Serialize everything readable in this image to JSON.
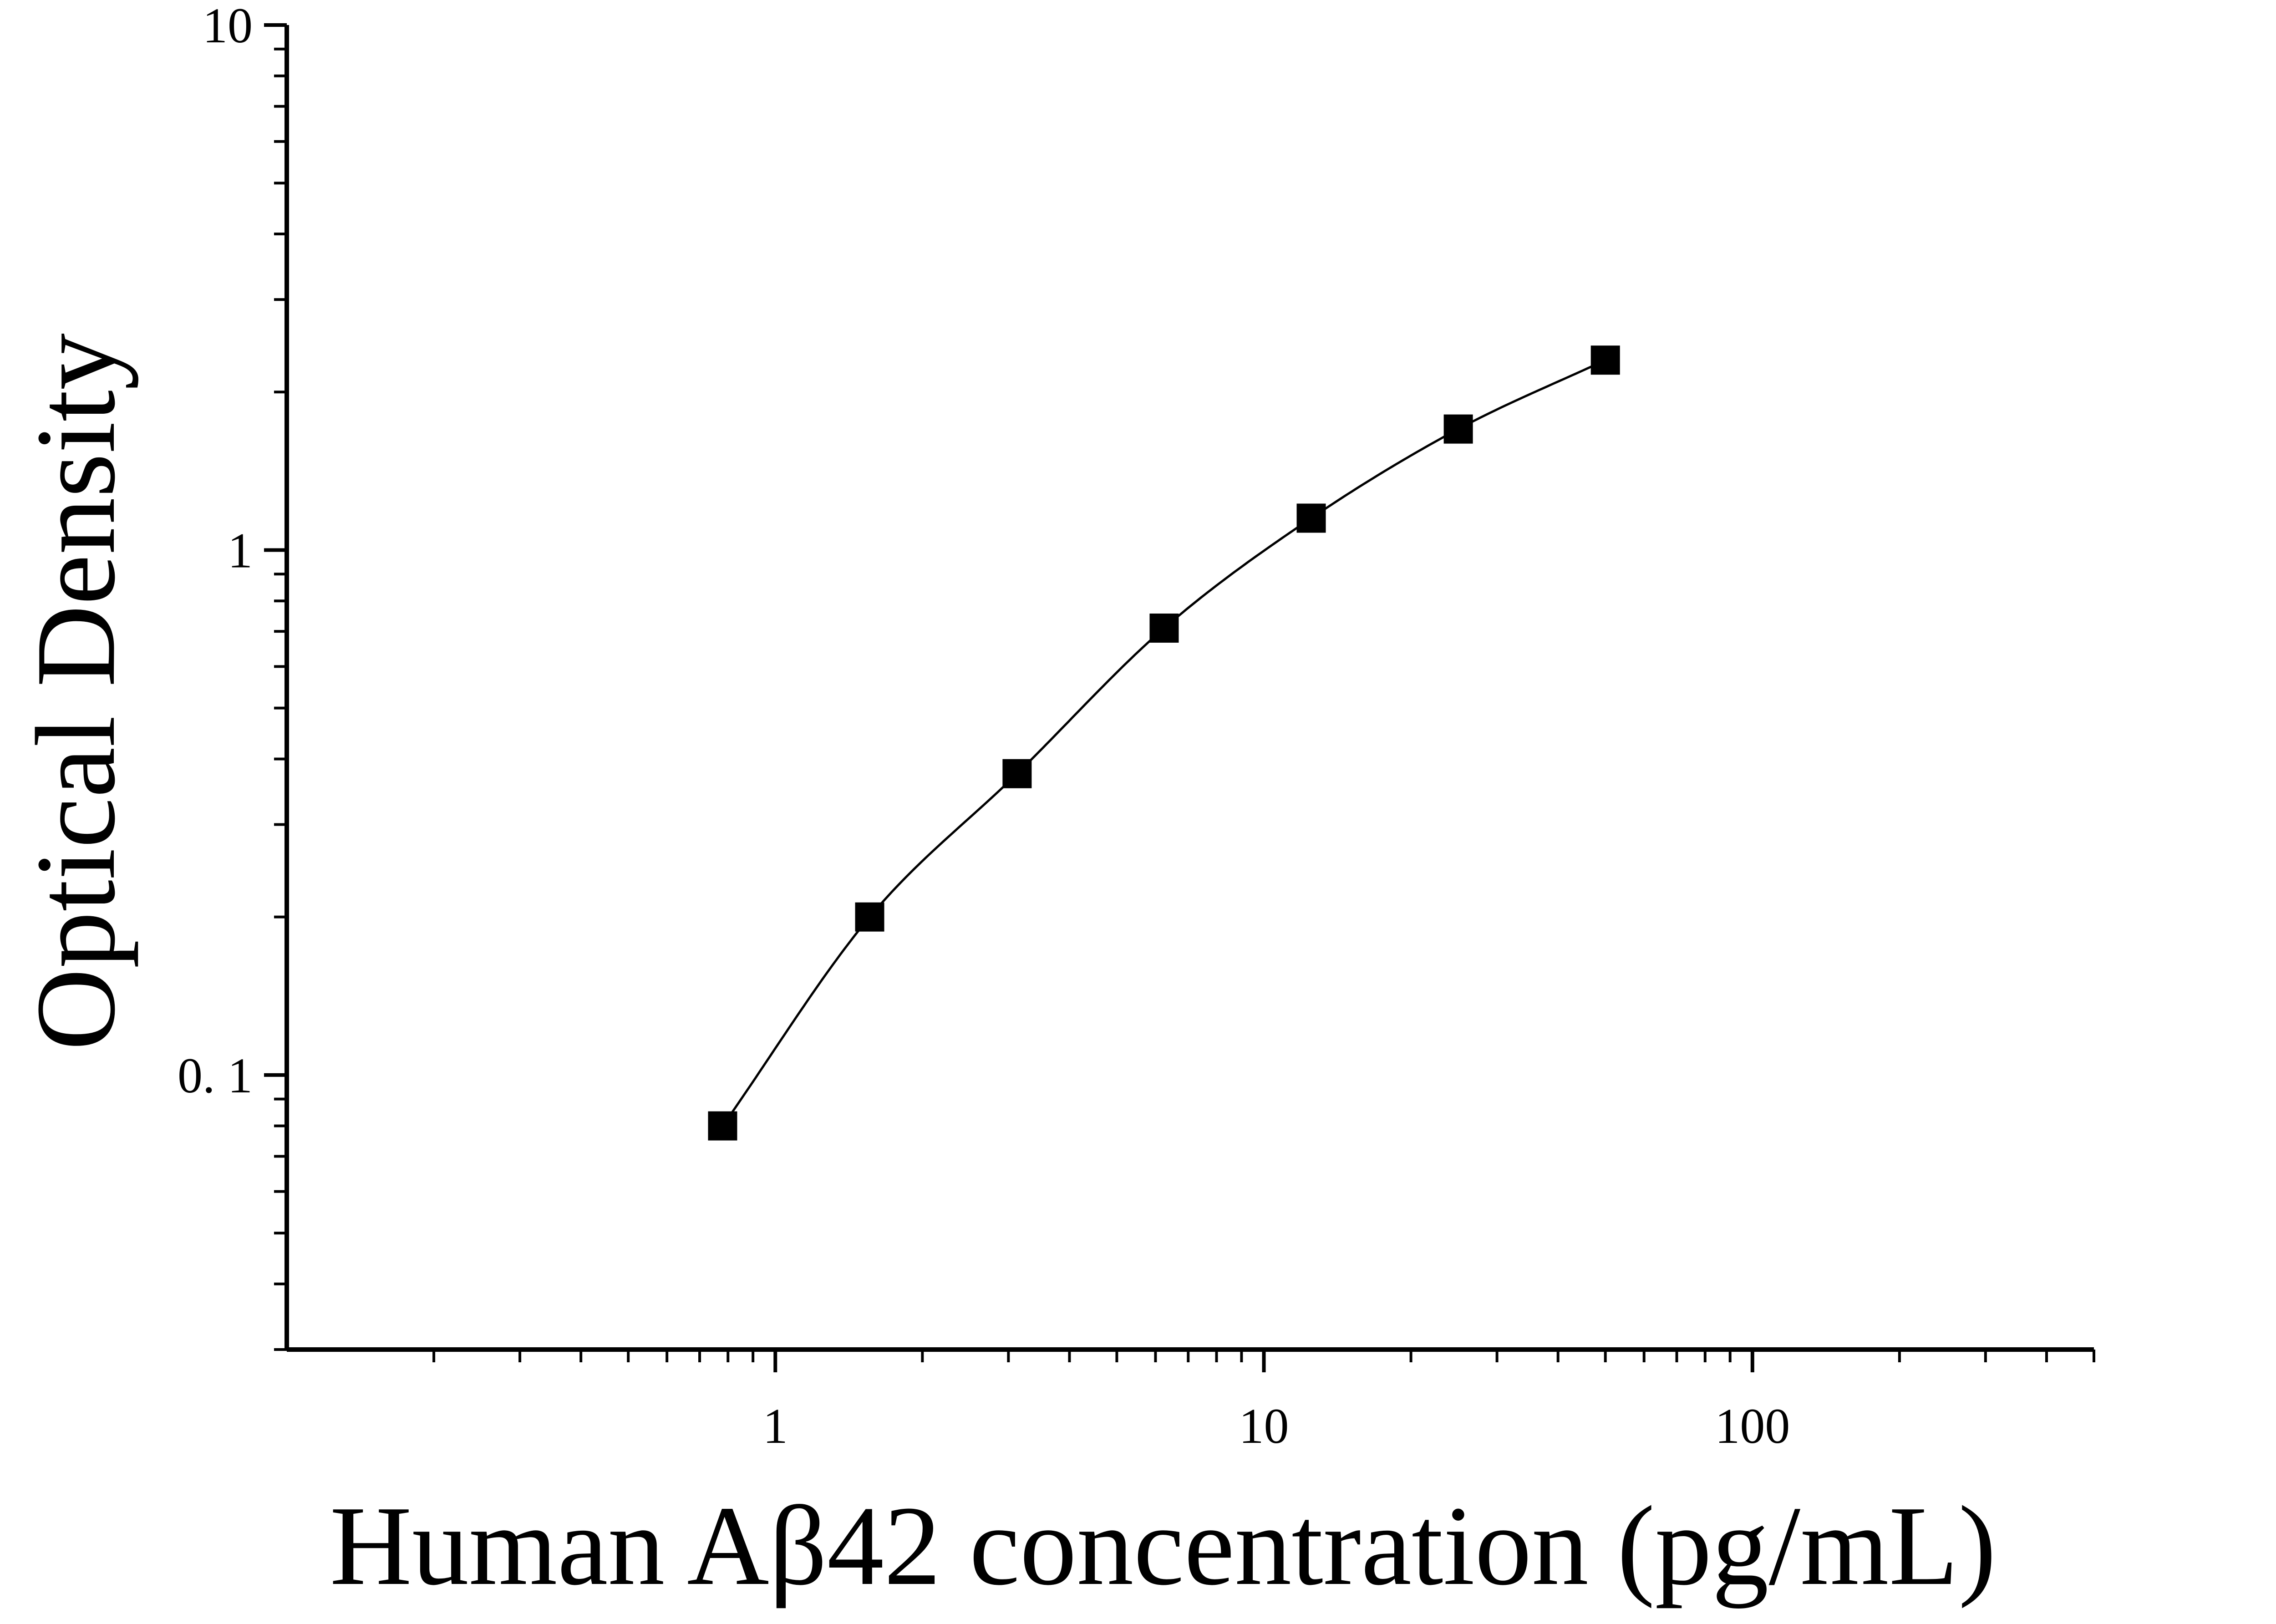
{
  "chart_data": {
    "type": "scatter",
    "title": "",
    "xlabel": "Human Aβ42 concentration (pg/mL)",
    "ylabel": "Optical Density",
    "xscale": "log",
    "yscale": "log",
    "xlim": [
      0.1,
      500
    ],
    "ylim": [
      0.03,
      10
    ],
    "x_ticks": [
      {
        "value": 1,
        "label": "1"
      },
      {
        "value": 10,
        "label": "10"
      },
      {
        "value": 100,
        "label": "100"
      }
    ],
    "y_ticks": [
      {
        "value": 0.1,
        "label": "0. 1"
      },
      {
        "value": 1,
        "label": "1"
      },
      {
        "value": 10,
        "label": "10"
      }
    ],
    "grid": false,
    "legend": "none",
    "fit_curve": true,
    "series": [
      {
        "marker": "square",
        "color": "#000000",
        "points": [
          {
            "x": 0.78,
            "y": 0.08
          },
          {
            "x": 1.56,
            "y": 0.2
          },
          {
            "x": 3.125,
            "y": 0.375
          },
          {
            "x": 6.25,
            "y": 0.71
          },
          {
            "x": 12.5,
            "y": 1.15
          },
          {
            "x": 25,
            "y": 1.7
          },
          {
            "x": 50,
            "y": 2.3
          }
        ]
      }
    ]
  }
}
